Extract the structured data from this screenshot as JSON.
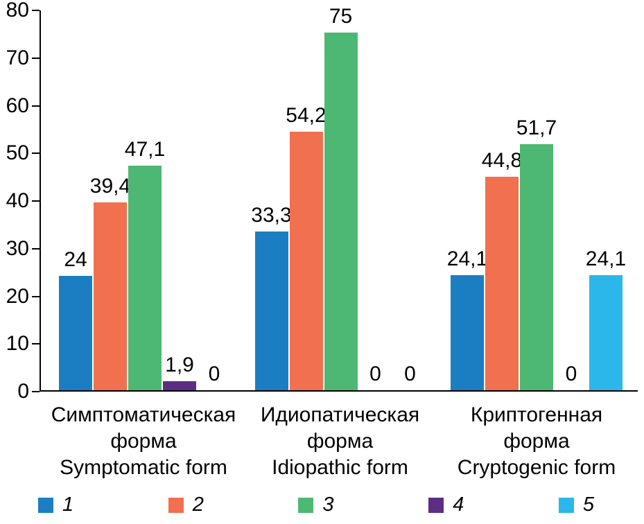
{
  "chart_data": {
    "type": "bar",
    "title": "",
    "xlabel": "",
    "ylabel": "",
    "ylim": [
      0,
      80
    ],
    "yticks": [
      0,
      10,
      20,
      30,
      40,
      50,
      60,
      70,
      80
    ],
    "grid": false,
    "legend_position": "bottom",
    "axis_color": "#000000",
    "text_color": "#000000",
    "categories": [
      {
        "lines": [
          "Симптоматическая",
          "форма",
          "Symptomatic form"
        ]
      },
      {
        "lines": [
          "Идиопатическая",
          "форма",
          "Idiopathic form"
        ]
      },
      {
        "lines": [
          "Криптогенная",
          "форма",
          "Cryptogenic form"
        ]
      }
    ],
    "series": [
      {
        "name": "1",
        "color": "#1b7ec2",
        "values": [
          24,
          33.3,
          24.1
        ],
        "value_labels": [
          "24",
          "33,3",
          "24,1"
        ]
      },
      {
        "name": "2",
        "color": "#f0704f",
        "values": [
          39.4,
          54.2,
          44.8
        ],
        "value_labels": [
          "39,4",
          "54,2",
          "44,8"
        ]
      },
      {
        "name": "3",
        "color": "#4db873",
        "values": [
          47.1,
          75,
          51.7
        ],
        "value_labels": [
          "47,1",
          "75",
          "51,7"
        ]
      },
      {
        "name": "4",
        "color": "#5c2d83",
        "values": [
          1.9,
          0,
          0
        ],
        "value_labels": [
          "1,9",
          "0",
          "0"
        ]
      },
      {
        "name": "5",
        "color": "#2bb7ea",
        "values": [
          0,
          0,
          24.1
        ],
        "value_labels": [
          "0",
          "0",
          "24,1"
        ]
      }
    ]
  }
}
